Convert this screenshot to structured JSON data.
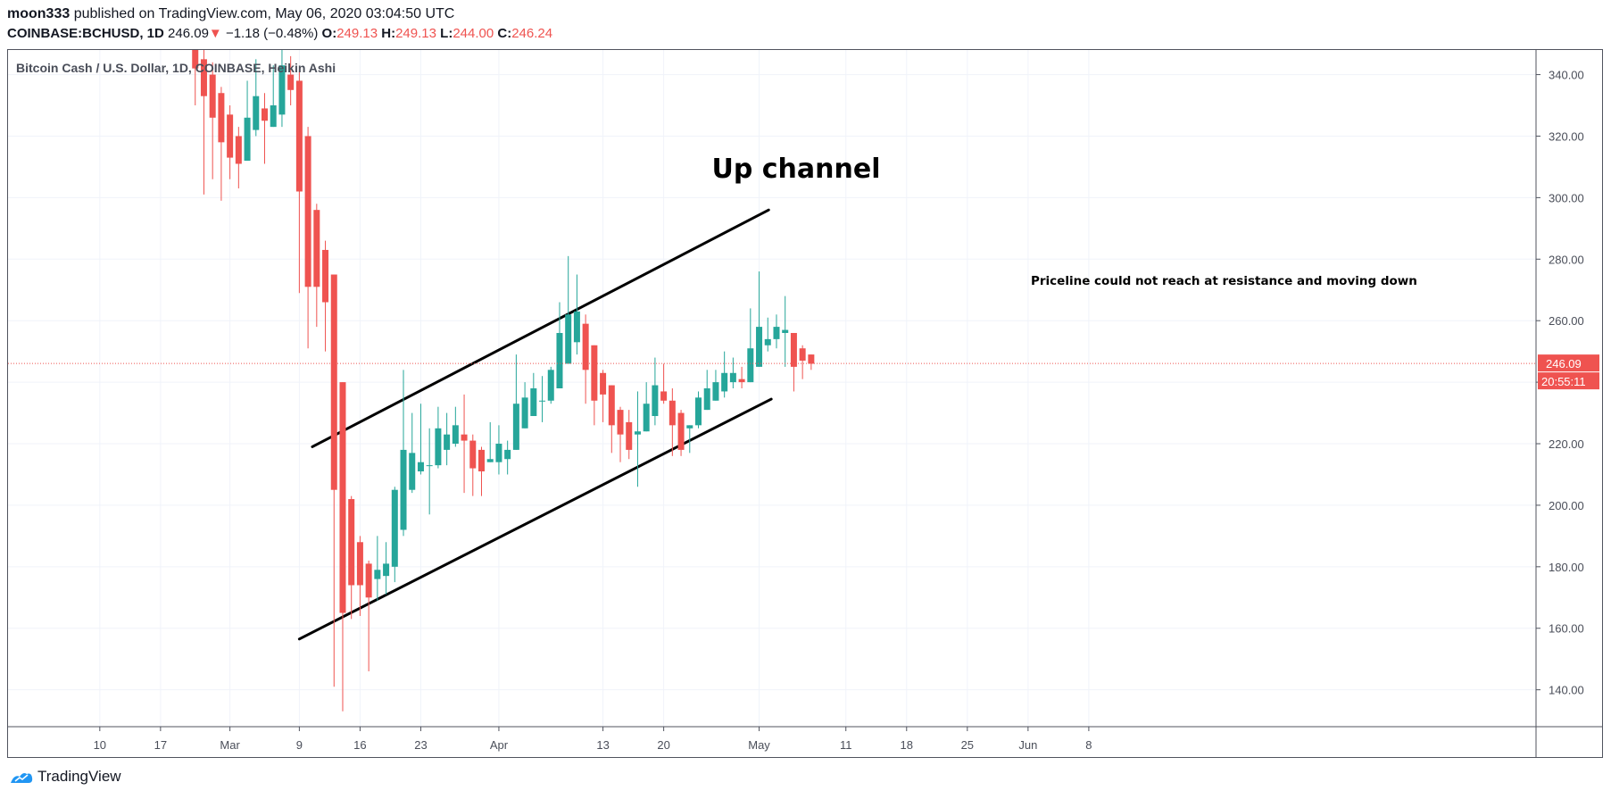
{
  "header": {
    "publisher": "moon333",
    "published_text": "published on TradingView.com, May 06, 2020 03:04:50 UTC",
    "symbol": "COINBASE:BCHUSD, 1D",
    "last": "246.09",
    "arrow": "▼",
    "change": "−1.18 (−0.48%)",
    "o_label": "O:",
    "o": "249.13",
    "h_label": "H:",
    "h": "249.13",
    "l_label": "L:",
    "l": "244.00",
    "c_label": "C:",
    "c": "246.24"
  },
  "footer": {
    "brand": "TradingView"
  },
  "colors": {
    "up": "#26a69a",
    "down": "#ef5350",
    "grid": "#f0f3fa",
    "axis": "#50535e",
    "text": "#131722"
  },
  "chart_data": {
    "type": "candlestick",
    "title": "Bitcoin Cash / U.S. Dollar, 1D, COINBASE, Heikin Ashi",
    "ylim": [
      128,
      348
    ],
    "y_ticks": [
      140,
      160,
      180,
      200,
      220,
      240,
      260,
      280,
      300,
      320,
      340
    ],
    "y_tick_labels": [
      "140.00",
      "160.00",
      "180.00",
      "200.00",
      "220.00",
      "240.00",
      "260.00",
      "280.00",
      "300.00",
      "320.00",
      "340.00"
    ],
    "x_ticks": [
      {
        "label": "10",
        "day": -19
      },
      {
        "label": "17",
        "day": -12
      },
      {
        "label": "Mar",
        "day": -4
      },
      {
        "label": "9",
        "day": 4
      },
      {
        "label": "16",
        "day": 11
      },
      {
        "label": "23",
        "day": 18
      },
      {
        "label": "Apr",
        "day": 27
      },
      {
        "label": "13",
        "day": 39
      },
      {
        "label": "20",
        "day": 46
      },
      {
        "label": "May",
        "day": 57
      },
      {
        "label": "11",
        "day": 67
      },
      {
        "label": "18",
        "day": 74
      },
      {
        "label": "25",
        "day": 81
      },
      {
        "label": "Jun",
        "day": 88
      },
      {
        "label": "8",
        "day": 95
      }
    ],
    "candles": [
      {
        "day": -8,
        "o": 352,
        "h": 355,
        "l": 330,
        "c": 342
      },
      {
        "day": -7,
        "o": 345,
        "h": 348,
        "l": 301,
        "c": 333
      },
      {
        "day": -6,
        "o": 340,
        "h": 344,
        "l": 306,
        "c": 326
      },
      {
        "day": -5,
        "o": 334,
        "h": 336,
        "l": 299,
        "c": 318
      },
      {
        "day": -4,
        "o": 327,
        "h": 330,
        "l": 306,
        "c": 313
      },
      {
        "day": -3,
        "o": 320,
        "h": 323,
        "l": 303,
        "c": 311
      },
      {
        "day": -2,
        "o": 312,
        "h": 338,
        "l": 312,
        "c": 326
      },
      {
        "day": -1,
        "o": 322,
        "h": 345,
        "l": 320,
        "c": 333
      },
      {
        "day": 0,
        "o": 329,
        "h": 334,
        "l": 311,
        "c": 325
      },
      {
        "day": 1,
        "o": 323,
        "h": 343,
        "l": 323,
        "c": 330
      },
      {
        "day": 2,
        "o": 327,
        "h": 348,
        "l": 323,
        "c": 343
      },
      {
        "day": 3,
        "o": 340,
        "h": 346,
        "l": 330,
        "c": 335
      },
      {
        "day": 4,
        "o": 338,
        "h": 341,
        "l": 269,
        "c": 302
      },
      {
        "day": 5,
        "o": 320,
        "h": 323,
        "l": 251,
        "c": 271
      },
      {
        "day": 6,
        "o": 296,
        "h": 298,
        "l": 258,
        "c": 271
      },
      {
        "day": 7,
        "o": 283,
        "h": 286,
        "l": 250,
        "c": 266
      },
      {
        "day": 8,
        "o": 275,
        "h": 275,
        "l": 141,
        "c": 205
      },
      {
        "day": 9,
        "o": 240,
        "h": 240,
        "l": 133,
        "c": 165
      },
      {
        "day": 10,
        "o": 202,
        "h": 203,
        "l": 163,
        "c": 174
      },
      {
        "day": 11,
        "o": 188,
        "h": 190,
        "l": 164,
        "c": 174
      },
      {
        "day": 12,
        "o": 181,
        "h": 182,
        "l": 146,
        "c": 170
      },
      {
        "day": 13,
        "o": 176,
        "h": 190,
        "l": 169,
        "c": 179
      },
      {
        "day": 14,
        "o": 177,
        "h": 188,
        "l": 171,
        "c": 181
      },
      {
        "day": 15,
        "o": 180,
        "h": 206,
        "l": 175,
        "c": 205
      },
      {
        "day": 16,
        "o": 192,
        "h": 244,
        "l": 190,
        "c": 218
      },
      {
        "day": 17,
        "o": 205,
        "h": 230,
        "l": 204,
        "c": 217
      },
      {
        "day": 18,
        "o": 211,
        "h": 233,
        "l": 210,
        "c": 214
      },
      {
        "day": 19,
        "o": 213,
        "h": 225,
        "l": 197,
        "c": 213
      },
      {
        "day": 20,
        "o": 213,
        "h": 232,
        "l": 212,
        "c": 225
      },
      {
        "day": 21,
        "o": 218,
        "h": 230,
        "l": 213,
        "c": 223
      },
      {
        "day": 22,
        "o": 220,
        "h": 232,
        "l": 219,
        "c": 226
      },
      {
        "day": 23,
        "o": 223,
        "h": 236,
        "l": 204,
        "c": 221
      },
      {
        "day": 24,
        "o": 221,
        "h": 223,
        "l": 203,
        "c": 212
      },
      {
        "day": 25,
        "o": 218,
        "h": 219,
        "l": 203,
        "c": 211
      },
      {
        "day": 26,
        "o": 214,
        "h": 227,
        "l": 214,
        "c": 215
      },
      {
        "day": 27,
        "o": 214,
        "h": 226,
        "l": 210,
        "c": 220
      },
      {
        "day": 28,
        "o": 215,
        "h": 221,
        "l": 210,
        "c": 218
      },
      {
        "day": 29,
        "o": 218,
        "h": 249,
        "l": 218,
        "c": 233
      },
      {
        "day": 30,
        "o": 225,
        "h": 240,
        "l": 225,
        "c": 235
      },
      {
        "day": 31,
        "o": 229,
        "h": 243,
        "l": 229,
        "c": 238
      },
      {
        "day": 32,
        "o": 234,
        "h": 242,
        "l": 227,
        "c": 234
      },
      {
        "day": 33,
        "o": 234,
        "h": 245,
        "l": 233,
        "c": 244
      },
      {
        "day": 34,
        "o": 238,
        "h": 266,
        "l": 238,
        "c": 256
      },
      {
        "day": 35,
        "o": 246,
        "h": 281,
        "l": 246,
        "c": 262
      },
      {
        "day": 36,
        "o": 253,
        "h": 275,
        "l": 249,
        "c": 263
      },
      {
        "day": 37,
        "o": 259,
        "h": 262,
        "l": 233,
        "c": 244
      },
      {
        "day": 38,
        "o": 252,
        "h": 252,
        "l": 226,
        "c": 234
      },
      {
        "day": 39,
        "o": 243,
        "h": 244,
        "l": 227,
        "c": 236
      },
      {
        "day": 40,
        "o": 239,
        "h": 239,
        "l": 217,
        "c": 226
      },
      {
        "day": 41,
        "o": 231,
        "h": 232,
        "l": 214,
        "c": 223
      },
      {
        "day": 42,
        "o": 227,
        "h": 231,
        "l": 215,
        "c": 218
      },
      {
        "day": 43,
        "o": 223,
        "h": 237,
        "l": 206,
        "c": 224
      },
      {
        "day": 44,
        "o": 224,
        "h": 240,
        "l": 224,
        "c": 233
      },
      {
        "day": 45,
        "o": 229,
        "h": 248,
        "l": 226,
        "c": 239
      },
      {
        "day": 46,
        "o": 237,
        "h": 246,
        "l": 233,
        "c": 234
      },
      {
        "day": 47,
        "o": 234,
        "h": 238,
        "l": 216,
        "c": 226
      },
      {
        "day": 48,
        "o": 230,
        "h": 231,
        "l": 216,
        "c": 218
      },
      {
        "day": 49,
        "o": 225,
        "h": 226,
        "l": 217,
        "c": 226
      },
      {
        "day": 50,
        "o": 226,
        "h": 237,
        "l": 225,
        "c": 235
      },
      {
        "day": 51,
        "o": 231,
        "h": 244,
        "l": 231,
        "c": 238
      },
      {
        "day": 52,
        "o": 234,
        "h": 244,
        "l": 234,
        "c": 240
      },
      {
        "day": 53,
        "o": 237,
        "h": 250,
        "l": 235,
        "c": 243
      },
      {
        "day": 54,
        "o": 240,
        "h": 248,
        "l": 238,
        "c": 243
      },
      {
        "day": 55,
        "o": 241,
        "h": 245,
        "l": 238,
        "c": 240
      },
      {
        "day": 56,
        "o": 240,
        "h": 264,
        "l": 240,
        "c": 251
      },
      {
        "day": 57,
        "o": 245,
        "h": 276,
        "l": 245,
        "c": 258
      },
      {
        "day": 58,
        "o": 252,
        "h": 261,
        "l": 250,
        "c": 254
      },
      {
        "day": 59,
        "o": 254,
        "h": 262,
        "l": 251,
        "c": 258
      },
      {
        "day": 60,
        "o": 256,
        "h": 268,
        "l": 245,
        "c": 257
      },
      {
        "day": 61,
        "o": 256,
        "h": 256,
        "l": 237,
        "c": 245
      },
      {
        "day": 62,
        "o": 251,
        "h": 252,
        "l": 241,
        "c": 247
      },
      {
        "day": 63,
        "o": 249,
        "h": 249,
        "l": 244,
        "c": 246
      }
    ],
    "last_price": 246.09,
    "last_price_label": "246.09",
    "countdown_label": "20:55:11",
    "channel": {
      "upper": [
        {
          "day": 5.5,
          "y": 219.0
        },
        {
          "day": 58.1,
          "y": 296.0
        }
      ],
      "lower": [
        {
          "day": 4.0,
          "y": 156.5
        },
        {
          "day": 58.4,
          "y": 234.5
        }
      ]
    },
    "annotations": {
      "title": "Up channel",
      "note": "Priceline could not reach at resistance and moving down"
    }
  }
}
